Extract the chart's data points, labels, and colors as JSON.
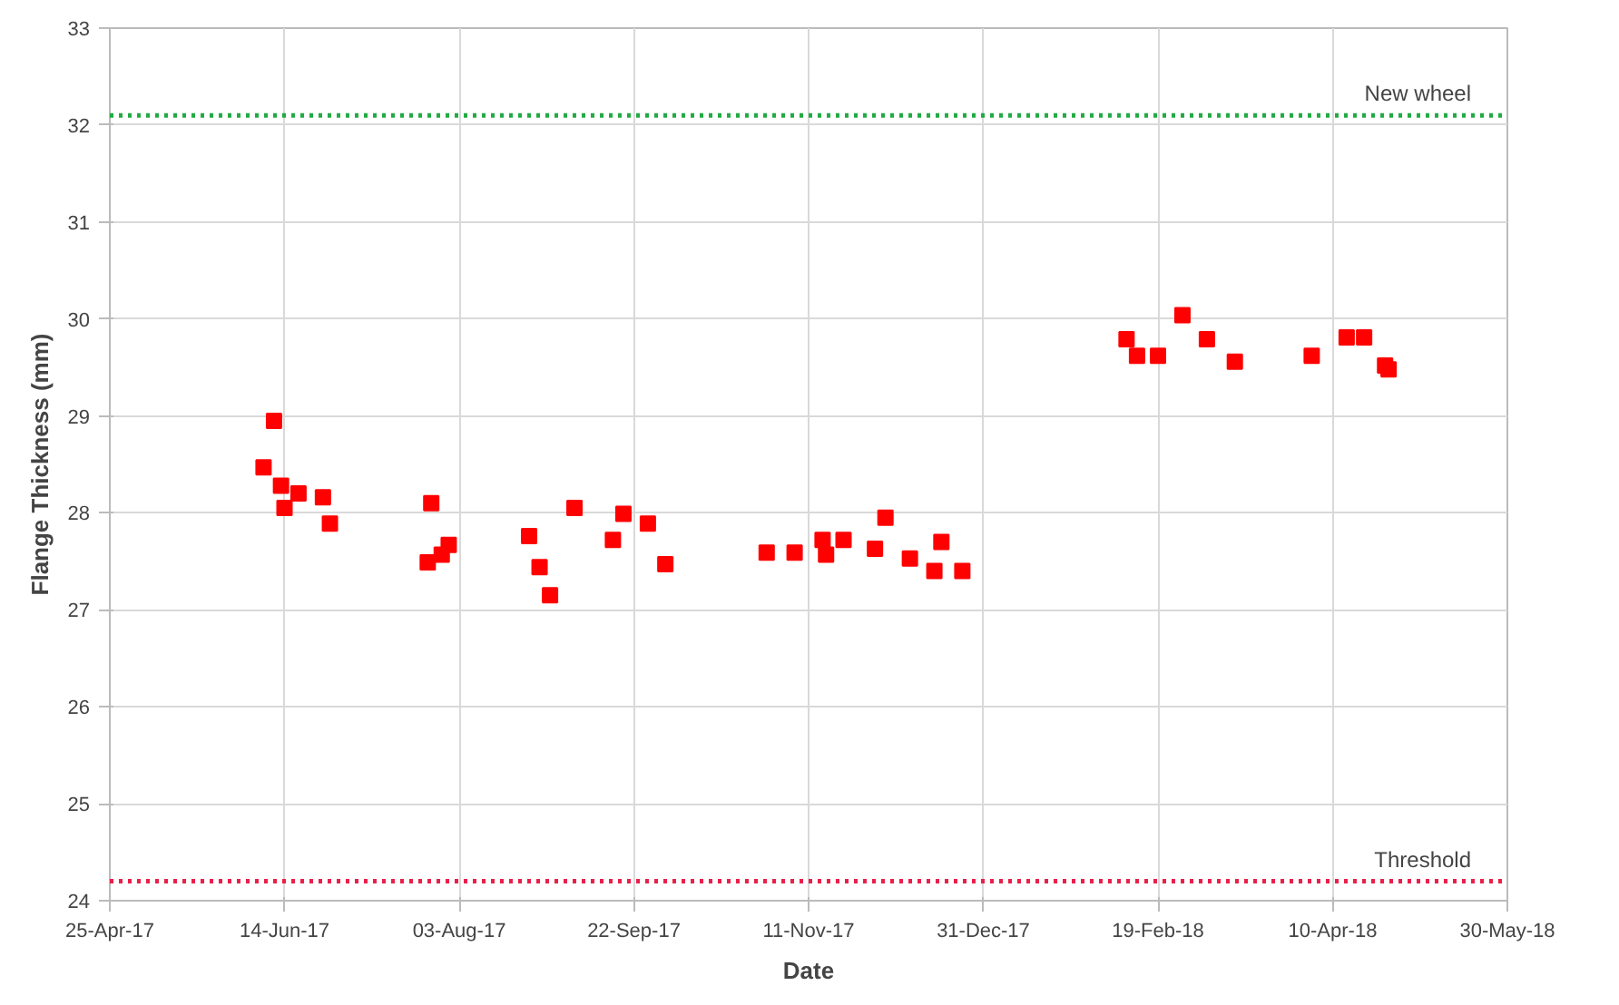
{
  "chart_data": {
    "type": "scatter",
    "xlabel": "Date",
    "ylabel": "Flange Thickness (mm)",
    "marker": "square",
    "grid": true,
    "x": [
      "2017-06-08",
      "2017-06-11",
      "2017-06-13",
      "2017-06-14",
      "2017-06-18",
      "2017-06-25",
      "2017-06-27",
      "2017-07-25",
      "2017-07-26",
      "2017-07-29",
      "2017-07-31",
      "2017-08-23",
      "2017-08-26",
      "2017-08-29",
      "2017-09-05",
      "2017-09-16",
      "2017-09-19",
      "2017-09-26",
      "2017-10-01",
      "2017-10-30",
      "2017-11-07",
      "2017-11-15",
      "2017-11-16",
      "2017-11-21",
      "2017-11-30",
      "2017-12-03",
      "2017-12-10",
      "2017-12-19",
      "2017-12-17",
      "2017-12-25",
      "2018-02-10",
      "2018-02-13",
      "2018-02-19",
      "2018-02-26",
      "2018-03-05",
      "2018-03-13",
      "2018-04-04",
      "2018-04-14",
      "2018-04-19",
      "2018-04-25",
      "2018-04-26"
    ],
    "series": [
      {
        "color": "#ff0000",
        "values": [
          28.47,
          28.95,
          28.28,
          28.05,
          28.2,
          28.16,
          27.89,
          27.49,
          28.1,
          27.57,
          27.67,
          27.76,
          27.44,
          27.15,
          28.05,
          27.72,
          27.99,
          27.89,
          27.47,
          27.59,
          27.59,
          27.72,
          27.57,
          27.72,
          27.63,
          27.95,
          27.53,
          27.7,
          27.4,
          27.4,
          29.79,
          29.62,
          29.62,
          30.04,
          29.79,
          29.56,
          29.62,
          29.81,
          29.81,
          29.52,
          29.48
        ]
      }
    ],
    "xlim": [
      "2017-04-25",
      "2018-05-30"
    ],
    "xticks": [
      {
        "value": "2017-04-25",
        "label": "25-Apr-17"
      },
      {
        "value": "2017-06-14",
        "label": "14-Jun-17"
      },
      {
        "value": "2017-08-03",
        "label": "03-Aug-17"
      },
      {
        "value": "2017-09-22",
        "label": "22-Sep-17"
      },
      {
        "value": "2017-11-11",
        "label": "11-Nov-17"
      },
      {
        "value": "2017-12-31",
        "label": "31-Dec-17"
      },
      {
        "value": "2018-02-19",
        "label": "19-Feb-18"
      },
      {
        "value": "2018-04-10",
        "label": "10-Apr-18"
      },
      {
        "value": "2018-05-30",
        "label": "30-May-18"
      }
    ],
    "ylim": [
      24,
      33
    ],
    "yticks": [
      24,
      25,
      26,
      27,
      28,
      29,
      30,
      31,
      32,
      33
    ],
    "ref_lines": [
      {
        "axis": "y",
        "value": 32.1,
        "label": "New wheel",
        "color": "#22aa44",
        "line_style": "dotted"
      },
      {
        "axis": "y",
        "value": 24.2,
        "label": "Threshold",
        "color": "#e8204a",
        "line_style": "dotted"
      }
    ]
  }
}
